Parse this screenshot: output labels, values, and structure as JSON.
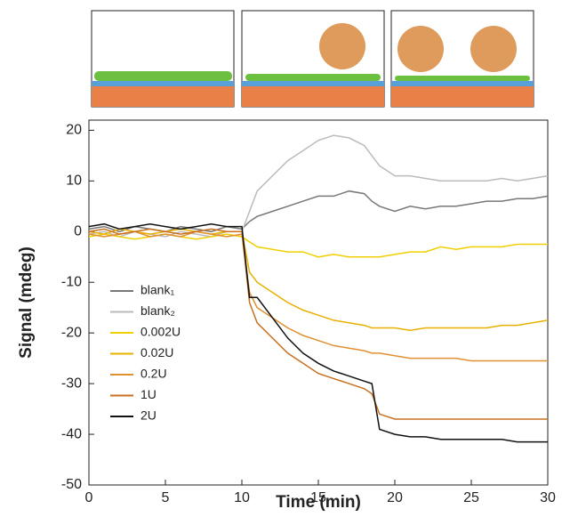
{
  "chart_data": {
    "type": "line",
    "x": [
      0,
      1,
      2,
      3,
      4,
      5,
      6,
      7,
      8,
      9,
      10,
      10.5,
      11,
      12,
      13,
      14,
      15,
      16,
      17,
      18,
      18.5,
      19,
      20,
      21,
      22,
      23,
      24,
      25,
      26,
      27,
      28,
      29,
      30
    ],
    "series": [
      {
        "name": "blank₁",
        "color": "#777777",
        "values": [
          0.5,
          1,
          0,
          1,
          0.5,
          0,
          1,
          0.5,
          0,
          1,
          0.5,
          2,
          3,
          4,
          5,
          6,
          7,
          7,
          8,
          7.5,
          6,
          5,
          4,
          5,
          4.5,
          5,
          5,
          5.5,
          6,
          6,
          6.5,
          6.5,
          7
        ]
      },
      {
        "name": "blank₂",
        "color": "#bbbbbb",
        "values": [
          -0.5,
          0,
          -1,
          0,
          -0.5,
          -1,
          0,
          -0.5,
          -1,
          0,
          0,
          4,
          8,
          11,
          14,
          16,
          18,
          19,
          18.5,
          17,
          15,
          13,
          11,
          11,
          10.5,
          10,
          10,
          10,
          10,
          10.5,
          10,
          10.5,
          11
        ]
      },
      {
        "name": "0.002U",
        "color": "#f0d000",
        "values": [
          -1,
          -0.5,
          -1,
          -1.5,
          -1,
          -0.5,
          -1,
          -1.5,
          -1,
          -0.5,
          -1,
          -2,
          -3,
          -3.5,
          -4,
          -4,
          -5,
          -4.5,
          -5,
          -5,
          -5,
          -5,
          -4.5,
          -4,
          -4,
          -3,
          -3.5,
          -3,
          -3,
          -3,
          -2.5,
          -2.5,
          -2.5
        ]
      },
      {
        "name": "0.02U",
        "color": "#e8b000",
        "values": [
          0,
          -0.5,
          0.5,
          0,
          -0.5,
          0,
          0.5,
          0,
          -0.5,
          0,
          0,
          -8,
          -10,
          -12,
          -14,
          -15.5,
          -16.5,
          -17.5,
          -18,
          -18.5,
          -19,
          -19,
          -19,
          -19.5,
          -19,
          -19,
          -19,
          -19,
          -19,
          -18.5,
          -18.5,
          -18,
          -17.5
        ]
      },
      {
        "name": "0.2U",
        "color": "#e09030",
        "values": [
          -0.5,
          -1,
          -0.5,
          0,
          -1,
          -0.5,
          -1,
          0,
          -0.5,
          -1,
          -0.5,
          -12,
          -15,
          -17,
          -19,
          -20.5,
          -21.5,
          -22.5,
          -23,
          -23.5,
          -24,
          -24,
          -24.5,
          -25,
          -25,
          -25,
          -25,
          -25.5,
          -25.5,
          -25.5,
          -25.5,
          -25.5,
          -25.5
        ]
      },
      {
        "name": "1U",
        "color": "#c87020",
        "values": [
          0,
          0.5,
          -0.5,
          0,
          0.5,
          0,
          -0.5,
          0,
          0.5,
          0,
          0,
          -14,
          -18,
          -21,
          -24,
          -26,
          -28,
          -29,
          -30,
          -31,
          -32,
          -36,
          -37,
          -37,
          -37,
          -37,
          -37,
          -37,
          -37,
          -37,
          -37,
          -37,
          -37
        ]
      },
      {
        "name": "2U",
        "color": "#111111",
        "values": [
          1,
          1.5,
          0.5,
          1,
          1.5,
          1,
          0.5,
          1,
          1.5,
          1,
          1,
          -13,
          -13,
          -17,
          -21,
          -24,
          -26,
          -27.5,
          -28.5,
          -29.5,
          -30,
          -39,
          -40,
          -40.5,
          -40.5,
          -41,
          -41,
          -41,
          -41,
          -41,
          -41.5,
          -41.5,
          -41.5
        ]
      }
    ],
    "xlabel": "Time (min)",
    "ylabel": "Signal (mdeg)",
    "xlim": [
      0,
      30
    ],
    "ylim": [
      -50,
      22
    ],
    "xticks": [
      0,
      5,
      10,
      15,
      20,
      25,
      30
    ],
    "yticks": [
      -50,
      -40,
      -30,
      -20,
      -10,
      0,
      10,
      20
    ],
    "legend": "left"
  }
}
